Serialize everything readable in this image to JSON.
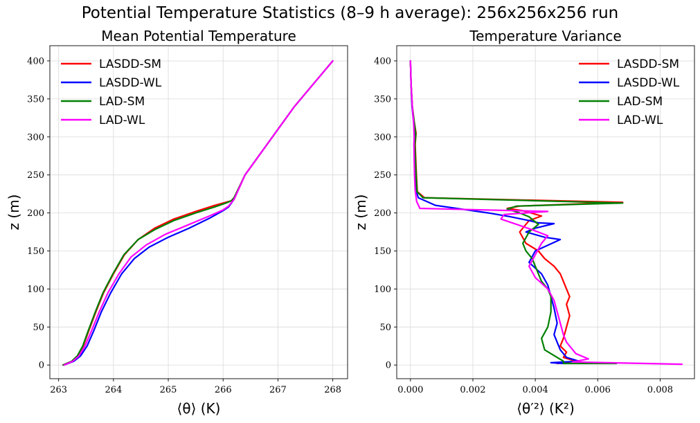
{
  "figure": {
    "suptitle": "Potential Temperature Statistics (8–9 h average): 256x256x256 run"
  },
  "chart_data": [
    {
      "type": "line",
      "title": "Mean Potential Temperature",
      "xlabel": "⟨θ⟩ (K)",
      "ylabel": "z (m)",
      "xlim": [
        262.84,
        268.27
      ],
      "ylim": [
        -18,
        420
      ],
      "xticks": [
        263,
        264,
        265,
        266,
        267,
        268
      ],
      "yticks": [
        0,
        50,
        100,
        150,
        200,
        250,
        300,
        350,
        400
      ],
      "grid": true,
      "legend": "upper-left",
      "series": [
        {
          "name": "LASDD-SM",
          "color": "#ff0000",
          "x": [
            263.08,
            263.25,
            263.35,
            263.45,
            263.55,
            263.68,
            263.82,
            264.0,
            264.2,
            264.45,
            264.75,
            265.1,
            265.5,
            265.85,
            266.05,
            266.15,
            266.2,
            266.4,
            266.7,
            267.0,
            267.3,
            267.65,
            268.0
          ],
          "y": [
            0,
            5,
            12,
            25,
            45,
            70,
            95,
            120,
            145,
            165,
            180,
            192,
            202,
            210,
            214,
            216,
            220,
            250,
            280,
            310,
            340,
            370,
            400
          ]
        },
        {
          "name": "LASDD-WL",
          "color": "#0000ff",
          "x": [
            263.1,
            263.28,
            263.4,
            263.52,
            263.64,
            263.78,
            263.95,
            264.15,
            264.38,
            264.65,
            265.0,
            265.38,
            265.75,
            266.0,
            266.1,
            266.2,
            266.4,
            266.7,
            267.0,
            267.3,
            267.65,
            268.0
          ],
          "y": [
            0,
            5,
            12,
            25,
            45,
            70,
            95,
            120,
            140,
            155,
            168,
            180,
            193,
            203,
            208,
            218,
            250,
            280,
            310,
            340,
            370,
            400
          ]
        },
        {
          "name": "LAD-SM",
          "color": "#008000",
          "x": [
            263.08,
            263.24,
            263.34,
            263.44,
            263.54,
            263.67,
            263.81,
            263.99,
            264.19,
            264.45,
            264.75,
            265.1,
            265.5,
            265.85,
            266.05,
            266.15,
            266.2,
            266.4,
            266.7,
            267.0,
            267.3,
            267.65,
            268.0
          ],
          "y": [
            0,
            5,
            12,
            25,
            45,
            70,
            95,
            120,
            145,
            165,
            178,
            190,
            200,
            208,
            213,
            216,
            220,
            250,
            280,
            310,
            340,
            370,
            400
          ]
        },
        {
          "name": "LAD-WL",
          "color": "#ff00ff",
          "x": [
            263.1,
            263.26,
            263.37,
            263.48,
            263.6,
            263.74,
            263.9,
            264.1,
            264.32,
            264.6,
            264.95,
            265.35,
            265.75,
            266.0,
            266.1,
            266.2,
            266.4,
            266.7,
            267.0,
            267.3,
            267.65,
            268.0
          ],
          "y": [
            0,
            5,
            12,
            25,
            45,
            70,
            95,
            120,
            142,
            158,
            172,
            184,
            196,
            204,
            209,
            218,
            250,
            280,
            310,
            340,
            370,
            400
          ]
        }
      ]
    },
    {
      "type": "line",
      "title": "Temperature Variance",
      "xlabel": "⟨θ′²⟩ (K²)",
      "ylabel": "z (m)",
      "xlim": [
        -0.00044,
        0.0091
      ],
      "ylim": [
        -18,
        420
      ],
      "xticks": [
        0.0,
        0.002,
        0.004,
        0.006,
        0.008
      ],
      "xticklabels": [
        "0.000",
        "0.002",
        "0.004",
        "0.006",
        "0.008"
      ],
      "yticks": [
        0,
        50,
        100,
        150,
        200,
        250,
        300,
        350,
        400
      ],
      "grid": true,
      "legend": "upper-right",
      "series": [
        {
          "name": "LASDD-SM",
          "color": "#ff0000",
          "x": [
            0.0,
            2e-05,
            6e-05,
            0.00012,
            0.00018,
            0.00015,
            0.00017,
            0.00019,
            0.00022,
            0.00045,
            0.0068,
            0.0035,
            0.0031,
            0.0036,
            0.0042,
            0.0038,
            0.0035,
            0.0037,
            0.0041,
            0.0043,
            0.0046,
            0.0048,
            0.0049,
            0.005,
            0.0051,
            0.005,
            0.0051,
            0.005,
            0.0049,
            0.0048,
            0.005,
            0.0049,
            0.0053,
            0.0047
          ],
          "y": [
            400,
            370,
            340,
            320,
            305,
            290,
            270,
            250,
            228,
            220,
            214,
            209,
            206,
            203,
            196,
            190,
            175,
            160,
            150,
            140,
            130,
            120,
            110,
            100,
            90,
            80,
            65,
            50,
            35,
            25,
            17,
            10,
            5,
            2
          ]
        },
        {
          "name": "LASDD-WL",
          "color": "#0000ff",
          "x": [
            0.0,
            2e-05,
            5e-05,
            0.0001,
            0.00015,
            0.00013,
            0.00015,
            0.00016,
            0.00018,
            0.00025,
            0.0008,
            0.0025,
            0.0032,
            0.0038,
            0.0041,
            0.0046,
            0.004,
            0.0037,
            0.0043,
            0.0048,
            0.004,
            0.0038,
            0.0042,
            0.0044,
            0.0045,
            0.0046,
            0.0047,
            0.0046,
            0.0047,
            0.0048,
            0.005,
            0.0054,
            0.0045,
            0.0049
          ],
          "y": [
            400,
            370,
            340,
            320,
            300,
            290,
            270,
            250,
            230,
            220,
            210,
            200,
            195,
            190,
            187,
            186,
            180,
            175,
            168,
            165,
            150,
            135,
            120,
            105,
            90,
            75,
            55,
            40,
            30,
            20,
            10,
            5,
            3,
            2
          ]
        },
        {
          "name": "LAD-SM",
          "color": "#008000",
          "x": [
            0.0,
            2e-05,
            6e-05,
            0.00012,
            0.00017,
            0.00014,
            0.00016,
            0.00018,
            0.00021,
            0.0004,
            0.0068,
            0.0034,
            0.0031,
            0.0035,
            0.0038,
            0.0041,
            0.0038,
            0.0036,
            0.0037,
            0.0039,
            0.004,
            0.0041,
            0.0042,
            0.0044,
            0.0045,
            0.0045,
            0.0044,
            0.0042,
            0.0043,
            0.0047,
            0.0049,
            0.0049,
            0.0066
          ],
          "y": [
            400,
            370,
            340,
            320,
            303,
            290,
            270,
            250,
            228,
            220,
            213,
            209,
            205,
            200,
            195,
            185,
            175,
            160,
            150,
            140,
            130,
            120,
            110,
            100,
            90,
            70,
            50,
            35,
            20,
            10,
            5,
            2,
            2
          ]
        },
        {
          "name": "LAD-WL",
          "color": "#ff00ff",
          "x": [
            0.0,
            2e-05,
            6e-05,
            0.0001,
            0.00012,
            0.00011,
            0.00012,
            0.00013,
            0.00015,
            0.0002,
            0.0003,
            0.0044,
            0.003,
            0.0029,
            0.0034,
            0.0039,
            0.0044,
            0.0042,
            0.004,
            0.0038,
            0.004,
            0.0044,
            0.0046,
            0.0047,
            0.0048,
            0.0049,
            0.005,
            0.0051,
            0.0053,
            0.0057,
            0.0052,
            0.0087
          ],
          "y": [
            400,
            370,
            340,
            320,
            300,
            290,
            270,
            250,
            230,
            215,
            206,
            202,
            198,
            192,
            185,
            178,
            170,
            160,
            145,
            130,
            115,
            100,
            85,
            70,
            55,
            40,
            30,
            25,
            15,
            8,
            4,
            1
          ]
        }
      ]
    }
  ]
}
